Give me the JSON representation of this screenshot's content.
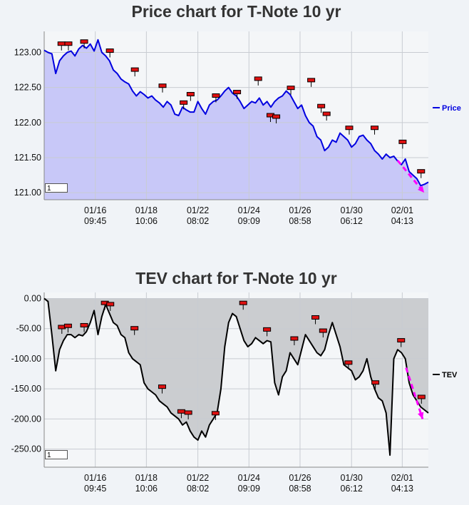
{
  "chart_data": [
    {
      "type": "area",
      "title": "Price chart for T-Note 10 yr",
      "ylim": [
        120.9,
        123.3
      ],
      "yticks": [
        121.0,
        121.5,
        122.0,
        122.5,
        123.0
      ],
      "ytick_labels": [
        "121.00",
        "121.50",
        "122.00",
        "122.50",
        "123.00"
      ],
      "xlim": [
        0,
        100
      ],
      "xticks": [
        {
          "x": 13.3,
          "date": "01/16",
          "time": "09:45"
        },
        {
          "x": 26.6,
          "date": "01/18",
          "time": "10:06"
        },
        {
          "x": 40.0,
          "date": "01/22",
          "time": "08:02"
        },
        {
          "x": 53.3,
          "date": "01/24",
          "time": "09:09"
        },
        {
          "x": 66.6,
          "date": "01/26",
          "time": "08:58"
        },
        {
          "x": 80.0,
          "date": "01/30",
          "time": "06:12"
        },
        {
          "x": 93.2,
          "date": "02/01",
          "time": "04:13"
        }
      ],
      "grid": true,
      "legend_position": "right",
      "zoom_value": "1",
      "series": [
        {
          "name": "Price",
          "color": "#0000e0",
          "fill": "#c8c8f8",
          "x": [
            0,
            1,
            2,
            3,
            4,
            5,
            6,
            7,
            8,
            9,
            10,
            11,
            12,
            13,
            14,
            15,
            16,
            17,
            18,
            19,
            20,
            21,
            22,
            23,
            24,
            25,
            26,
            27,
            28,
            29,
            30,
            31,
            32,
            33,
            34,
            35,
            36,
            37,
            38,
            39,
            40,
            41,
            42,
            43,
            44,
            45,
            46,
            47,
            48,
            49,
            50,
            51,
            52,
            53,
            54,
            55,
            56,
            57,
            58,
            59,
            60,
            61,
            62,
            63,
            64,
            65,
            66,
            67,
            68,
            69,
            70,
            71,
            72,
            73,
            74,
            75,
            76,
            77,
            78,
            79,
            80,
            81,
            82,
            83,
            84,
            85,
            86,
            87,
            88,
            89,
            90,
            91,
            92,
            93,
            94,
            95,
            96,
            97,
            98,
            99,
            100
          ],
          "values": [
            123.03,
            123.0,
            122.98,
            122.7,
            122.88,
            122.95,
            123.0,
            123.02,
            122.95,
            123.05,
            123.1,
            123.06,
            123.12,
            123.02,
            123.18,
            123.0,
            122.95,
            122.88,
            122.75,
            122.7,
            122.62,
            122.58,
            122.55,
            122.45,
            122.38,
            122.44,
            122.4,
            122.35,
            122.38,
            122.32,
            122.28,
            122.22,
            122.3,
            122.25,
            122.12,
            122.1,
            122.22,
            122.18,
            122.15,
            122.15,
            122.3,
            122.2,
            122.12,
            122.25,
            122.3,
            122.32,
            122.38,
            122.45,
            122.5,
            122.42,
            122.38,
            122.3,
            122.2,
            122.25,
            122.3,
            122.28,
            122.35,
            122.25,
            122.3,
            122.22,
            122.3,
            122.35,
            122.38,
            122.45,
            122.4,
            122.3,
            122.2,
            122.25,
            122.1,
            122.0,
            121.95,
            121.8,
            121.75,
            121.6,
            121.65,
            121.75,
            121.72,
            121.85,
            121.8,
            121.75,
            121.65,
            121.7,
            121.8,
            121.82,
            121.75,
            121.7,
            121.6,
            121.55,
            121.48,
            121.55,
            121.5,
            121.52,
            121.45,
            121.4,
            121.48,
            121.3,
            121.25,
            121.2,
            121.1,
            121.12,
            121.15
          ],
          "markers": [
            {
              "x": 4.5,
              "value": 123.12
            },
            {
              "x": 6.3,
              "value": 123.12
            },
            {
              "x": 10.4,
              "value": 123.15
            },
            {
              "x": 17.1,
              "value": 123.02
            },
            {
              "x": 23.6,
              "value": 122.75
            },
            {
              "x": 30.8,
              "value": 122.52
            },
            {
              "x": 36.3,
              "value": 122.28
            },
            {
              "x": 38.1,
              "value": 122.4
            },
            {
              "x": 44.7,
              "value": 122.38
            },
            {
              "x": 50.2,
              "value": 122.43
            },
            {
              "x": 55.7,
              "value": 122.62
            },
            {
              "x": 58.9,
              "value": 122.1
            },
            {
              "x": 60.4,
              "value": 122.08
            },
            {
              "x": 64.2,
              "value": 122.49
            },
            {
              "x": 69.5,
              "value": 122.6
            },
            {
              "x": 72.1,
              "value": 122.23
            },
            {
              "x": 73.5,
              "value": 122.12
            },
            {
              "x": 79.4,
              "value": 121.92
            },
            {
              "x": 86.0,
              "value": 121.92
            },
            {
              "x": 93.3,
              "value": 121.72
            },
            {
              "x": 98.1,
              "value": 121.3
            }
          ],
          "trend_arrow": {
            "x0": 92.0,
            "y0": 121.46,
            "x1": 98.9,
            "y1": 121.0,
            "color": "#ff00ff"
          }
        }
      ]
    },
    {
      "type": "area",
      "title": "TEV chart for T-Note 10 yr",
      "ylim": [
        -280,
        10
      ],
      "yticks": [
        0,
        -50,
        -100,
        -150,
        -200,
        -250
      ],
      "ytick_labels": [
        "0.00",
        "-50.00",
        "-100.00",
        "-150.00",
        "-200.00",
        "-250.00"
      ],
      "xlim": [
        0,
        100
      ],
      "xticks": [
        {
          "x": 13.3,
          "date": "01/16",
          "time": "09:45"
        },
        {
          "x": 26.6,
          "date": "01/18",
          "time": "10:06"
        },
        {
          "x": 40.0,
          "date": "01/22",
          "time": "08:02"
        },
        {
          "x": 53.3,
          "date": "01/24",
          "time": "09:09"
        },
        {
          "x": 66.6,
          "date": "01/26",
          "time": "08:58"
        },
        {
          "x": 80.0,
          "date": "01/30",
          "time": "06:12"
        },
        {
          "x": 93.2,
          "date": "02/01",
          "time": "04:13"
        }
      ],
      "grid": true,
      "legend_position": "right",
      "zoom_value": "1",
      "series": [
        {
          "name": "TEV",
          "color": "#000000",
          "fill": "#cbcdd0",
          "x": [
            0,
            1,
            2,
            3,
            4,
            5,
            6,
            7,
            8,
            9,
            10,
            11,
            12,
            13,
            14,
            15,
            16,
            17,
            18,
            19,
            20,
            21,
            22,
            23,
            24,
            25,
            26,
            27,
            28,
            29,
            30,
            31,
            32,
            33,
            34,
            35,
            36,
            37,
            38,
            39,
            40,
            41,
            42,
            43,
            44,
            45,
            46,
            47,
            48,
            49,
            50,
            51,
            52,
            53,
            54,
            55,
            56,
            57,
            58,
            59,
            60,
            61,
            62,
            63,
            64,
            65,
            66,
            67,
            68,
            69,
            70,
            71,
            72,
            73,
            74,
            75,
            76,
            77,
            78,
            79,
            80,
            81,
            82,
            83,
            84,
            85,
            86,
            87,
            88,
            89,
            90,
            91,
            92,
            93,
            94,
            95,
            96,
            97,
            98,
            99,
            100
          ],
          "values": [
            0,
            -5,
            -60,
            -120,
            -85,
            -70,
            -60,
            -60,
            -65,
            -60,
            -62,
            -55,
            -40,
            -20,
            -60,
            -30,
            -10,
            -25,
            -40,
            -45,
            -60,
            -65,
            -90,
            -100,
            -105,
            -110,
            -140,
            -150,
            -155,
            -160,
            -170,
            -175,
            -180,
            -190,
            -195,
            -200,
            -210,
            -205,
            -220,
            -230,
            -235,
            -220,
            -230,
            -210,
            -200,
            -190,
            -150,
            -80,
            -40,
            -25,
            -30,
            -50,
            -70,
            -80,
            -75,
            -65,
            -70,
            -75,
            -70,
            -72,
            -140,
            -160,
            -130,
            -120,
            -90,
            -100,
            -110,
            -85,
            -60,
            -70,
            -80,
            -90,
            -95,
            -85,
            -60,
            -40,
            -60,
            -80,
            -110,
            -115,
            -120,
            -135,
            -130,
            -120,
            -100,
            -130,
            -150,
            -165,
            -170,
            -190,
            -260,
            -100,
            -85,
            -90,
            -100,
            -140,
            -160,
            -170,
            -180,
            -185,
            -190
          ],
          "markers": [
            {
              "x": 4.6,
              "value": -48
            },
            {
              "x": 6.2,
              "value": -46
            },
            {
              "x": 10.4,
              "value": -45
            },
            {
              "x": 15.8,
              "value": -8
            },
            {
              "x": 17.2,
              "value": -10
            },
            {
              "x": 23.5,
              "value": -50
            },
            {
              "x": 30.7,
              "value": -147
            },
            {
              "x": 35.7,
              "value": -188
            },
            {
              "x": 37.5,
              "value": -190
            },
            {
              "x": 44.6,
              "value": -191
            },
            {
              "x": 51.8,
              "value": -8
            },
            {
              "x": 58.0,
              "value": -52
            },
            {
              "x": 65.1,
              "value": -67
            },
            {
              "x": 70.6,
              "value": -32
            },
            {
              "x": 72.6,
              "value": -54
            },
            {
              "x": 79.2,
              "value": -107
            },
            {
              "x": 86.2,
              "value": -140
            },
            {
              "x": 92.9,
              "value": -70
            },
            {
              "x": 98.2,
              "value": -164
            }
          ],
          "trend_arrow": {
            "x0": 94.2,
            "y0": -115,
            "x1": 98.5,
            "y1": -200,
            "color": "#ff00ff"
          }
        }
      ]
    }
  ]
}
